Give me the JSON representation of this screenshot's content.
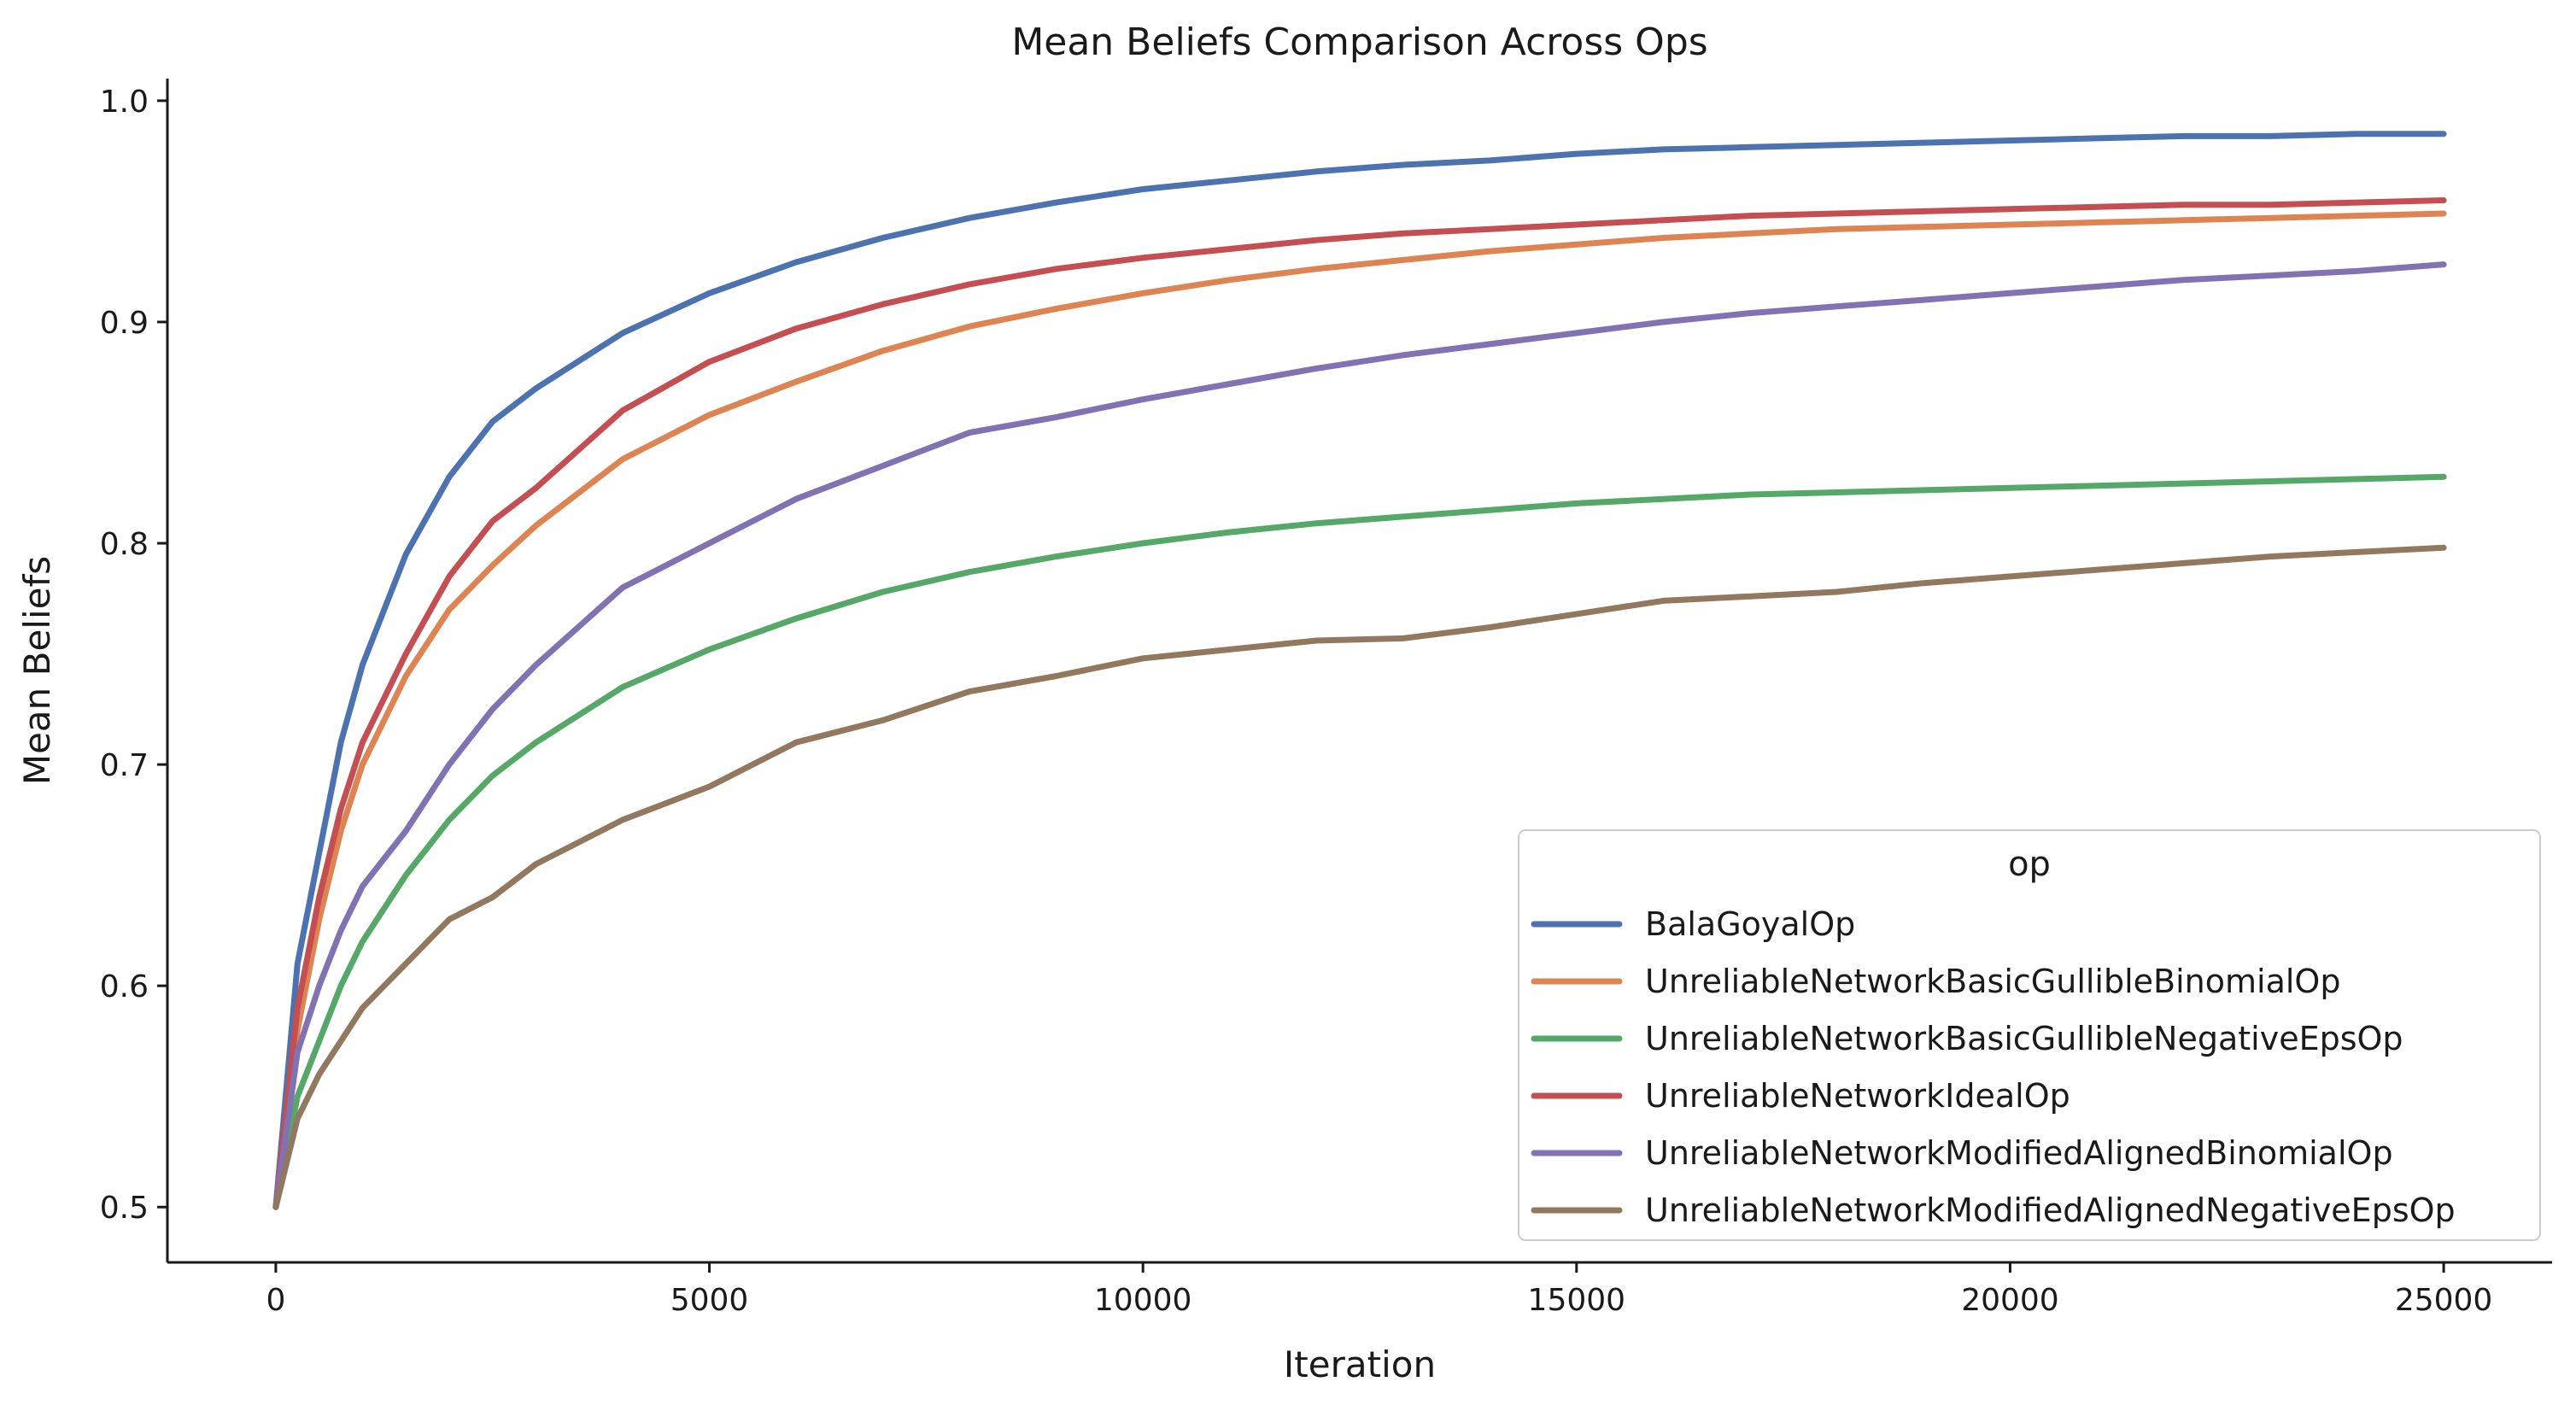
{
  "chart_data": {
    "type": "line",
    "title": "Mean Beliefs Comparison Across Ops",
    "xlabel": "Iteration",
    "ylabel": "Mean Beliefs",
    "xlim": [
      -1250,
      26250
    ],
    "ylim": [
      0.475,
      1.01
    ],
    "xticks": [
      0,
      5000,
      10000,
      15000,
      20000,
      25000
    ],
    "yticks": [
      0.5,
      0.6,
      0.7,
      0.8,
      0.9,
      1.0
    ],
    "xtick_labels": [
      "0",
      "5000",
      "10000",
      "15000",
      "20000",
      "25000"
    ],
    "ytick_labels": [
      "0.5",
      "0.6",
      "0.7",
      "0.8",
      "0.9",
      "1.0"
    ],
    "grid": false,
    "legend": {
      "title": "op",
      "placement": "bottom-right"
    },
    "x": [
      0,
      250,
      500,
      750,
      1000,
      1500,
      2000,
      2500,
      3000,
      4000,
      5000,
      6000,
      7000,
      8000,
      9000,
      10000,
      11000,
      12000,
      13000,
      14000,
      15000,
      16000,
      17000,
      18000,
      19000,
      20000,
      21000,
      22000,
      23000,
      24000,
      25000
    ],
    "series": [
      {
        "name": "BalaGoyalOp",
        "color": "#4c72b0",
        "values": [
          0.5,
          0.61,
          0.66,
          0.71,
          0.745,
          0.795,
          0.83,
          0.855,
          0.87,
          0.895,
          0.913,
          0.927,
          0.938,
          0.947,
          0.954,
          0.96,
          0.964,
          0.968,
          0.971,
          0.973,
          0.976,
          0.978,
          0.979,
          0.98,
          0.981,
          0.982,
          0.983,
          0.984,
          0.984,
          0.985,
          0.985
        ]
      },
      {
        "name": "UnreliableNetworkBasicGullibleBinomialOp",
        "color": "#dd8452",
        "values": [
          0.5,
          0.58,
          0.63,
          0.67,
          0.7,
          0.74,
          0.77,
          0.79,
          0.808,
          0.838,
          0.858,
          0.873,
          0.887,
          0.898,
          0.906,
          0.913,
          0.919,
          0.924,
          0.928,
          0.932,
          0.935,
          0.938,
          0.94,
          0.942,
          0.943,
          0.944,
          0.945,
          0.946,
          0.947,
          0.948,
          0.949
        ]
      },
      {
        "name": "UnreliableNetworkBasicGullibleNegativeEpsOp",
        "color": "#55a868",
        "values": [
          0.5,
          0.55,
          0.575,
          0.6,
          0.62,
          0.65,
          0.675,
          0.695,
          0.71,
          0.735,
          0.752,
          0.766,
          0.778,
          0.787,
          0.794,
          0.8,
          0.805,
          0.809,
          0.812,
          0.815,
          0.818,
          0.82,
          0.822,
          0.823,
          0.824,
          0.825,
          0.826,
          0.827,
          0.828,
          0.829,
          0.83
        ]
      },
      {
        "name": "UnreliableNetworkIdealOp",
        "color": "#c44e52",
        "values": [
          0.5,
          0.59,
          0.64,
          0.68,
          0.71,
          0.75,
          0.785,
          0.81,
          0.825,
          0.86,
          0.882,
          0.897,
          0.908,
          0.917,
          0.924,
          0.929,
          0.933,
          0.937,
          0.94,
          0.942,
          0.944,
          0.946,
          0.948,
          0.949,
          0.95,
          0.951,
          0.952,
          0.953,
          0.953,
          0.954,
          0.955
        ]
      },
      {
        "name": "UnreliableNetworkModifiedAlignedBinomialOp",
        "color": "#8172b3",
        "values": [
          0.5,
          0.57,
          0.6,
          0.625,
          0.645,
          0.67,
          0.7,
          0.725,
          0.745,
          0.78,
          0.8,
          0.82,
          0.835,
          0.85,
          0.857,
          0.865,
          0.872,
          0.879,
          0.885,
          0.89,
          0.895,
          0.9,
          0.904,
          0.907,
          0.91,
          0.913,
          0.916,
          0.919,
          0.921,
          0.923,
          0.926
        ]
      },
      {
        "name": "UnreliableNetworkModifiedAlignedNegativeEpsOp",
        "color": "#937860",
        "values": [
          0.5,
          0.54,
          0.56,
          0.575,
          0.59,
          0.61,
          0.63,
          0.64,
          0.655,
          0.675,
          0.69,
          0.71,
          0.72,
          0.733,
          0.74,
          0.748,
          0.752,
          0.756,
          0.757,
          0.762,
          0.768,
          0.774,
          0.776,
          0.778,
          0.782,
          0.785,
          0.788,
          0.791,
          0.794,
          0.796,
          0.798
        ]
      }
    ]
  }
}
